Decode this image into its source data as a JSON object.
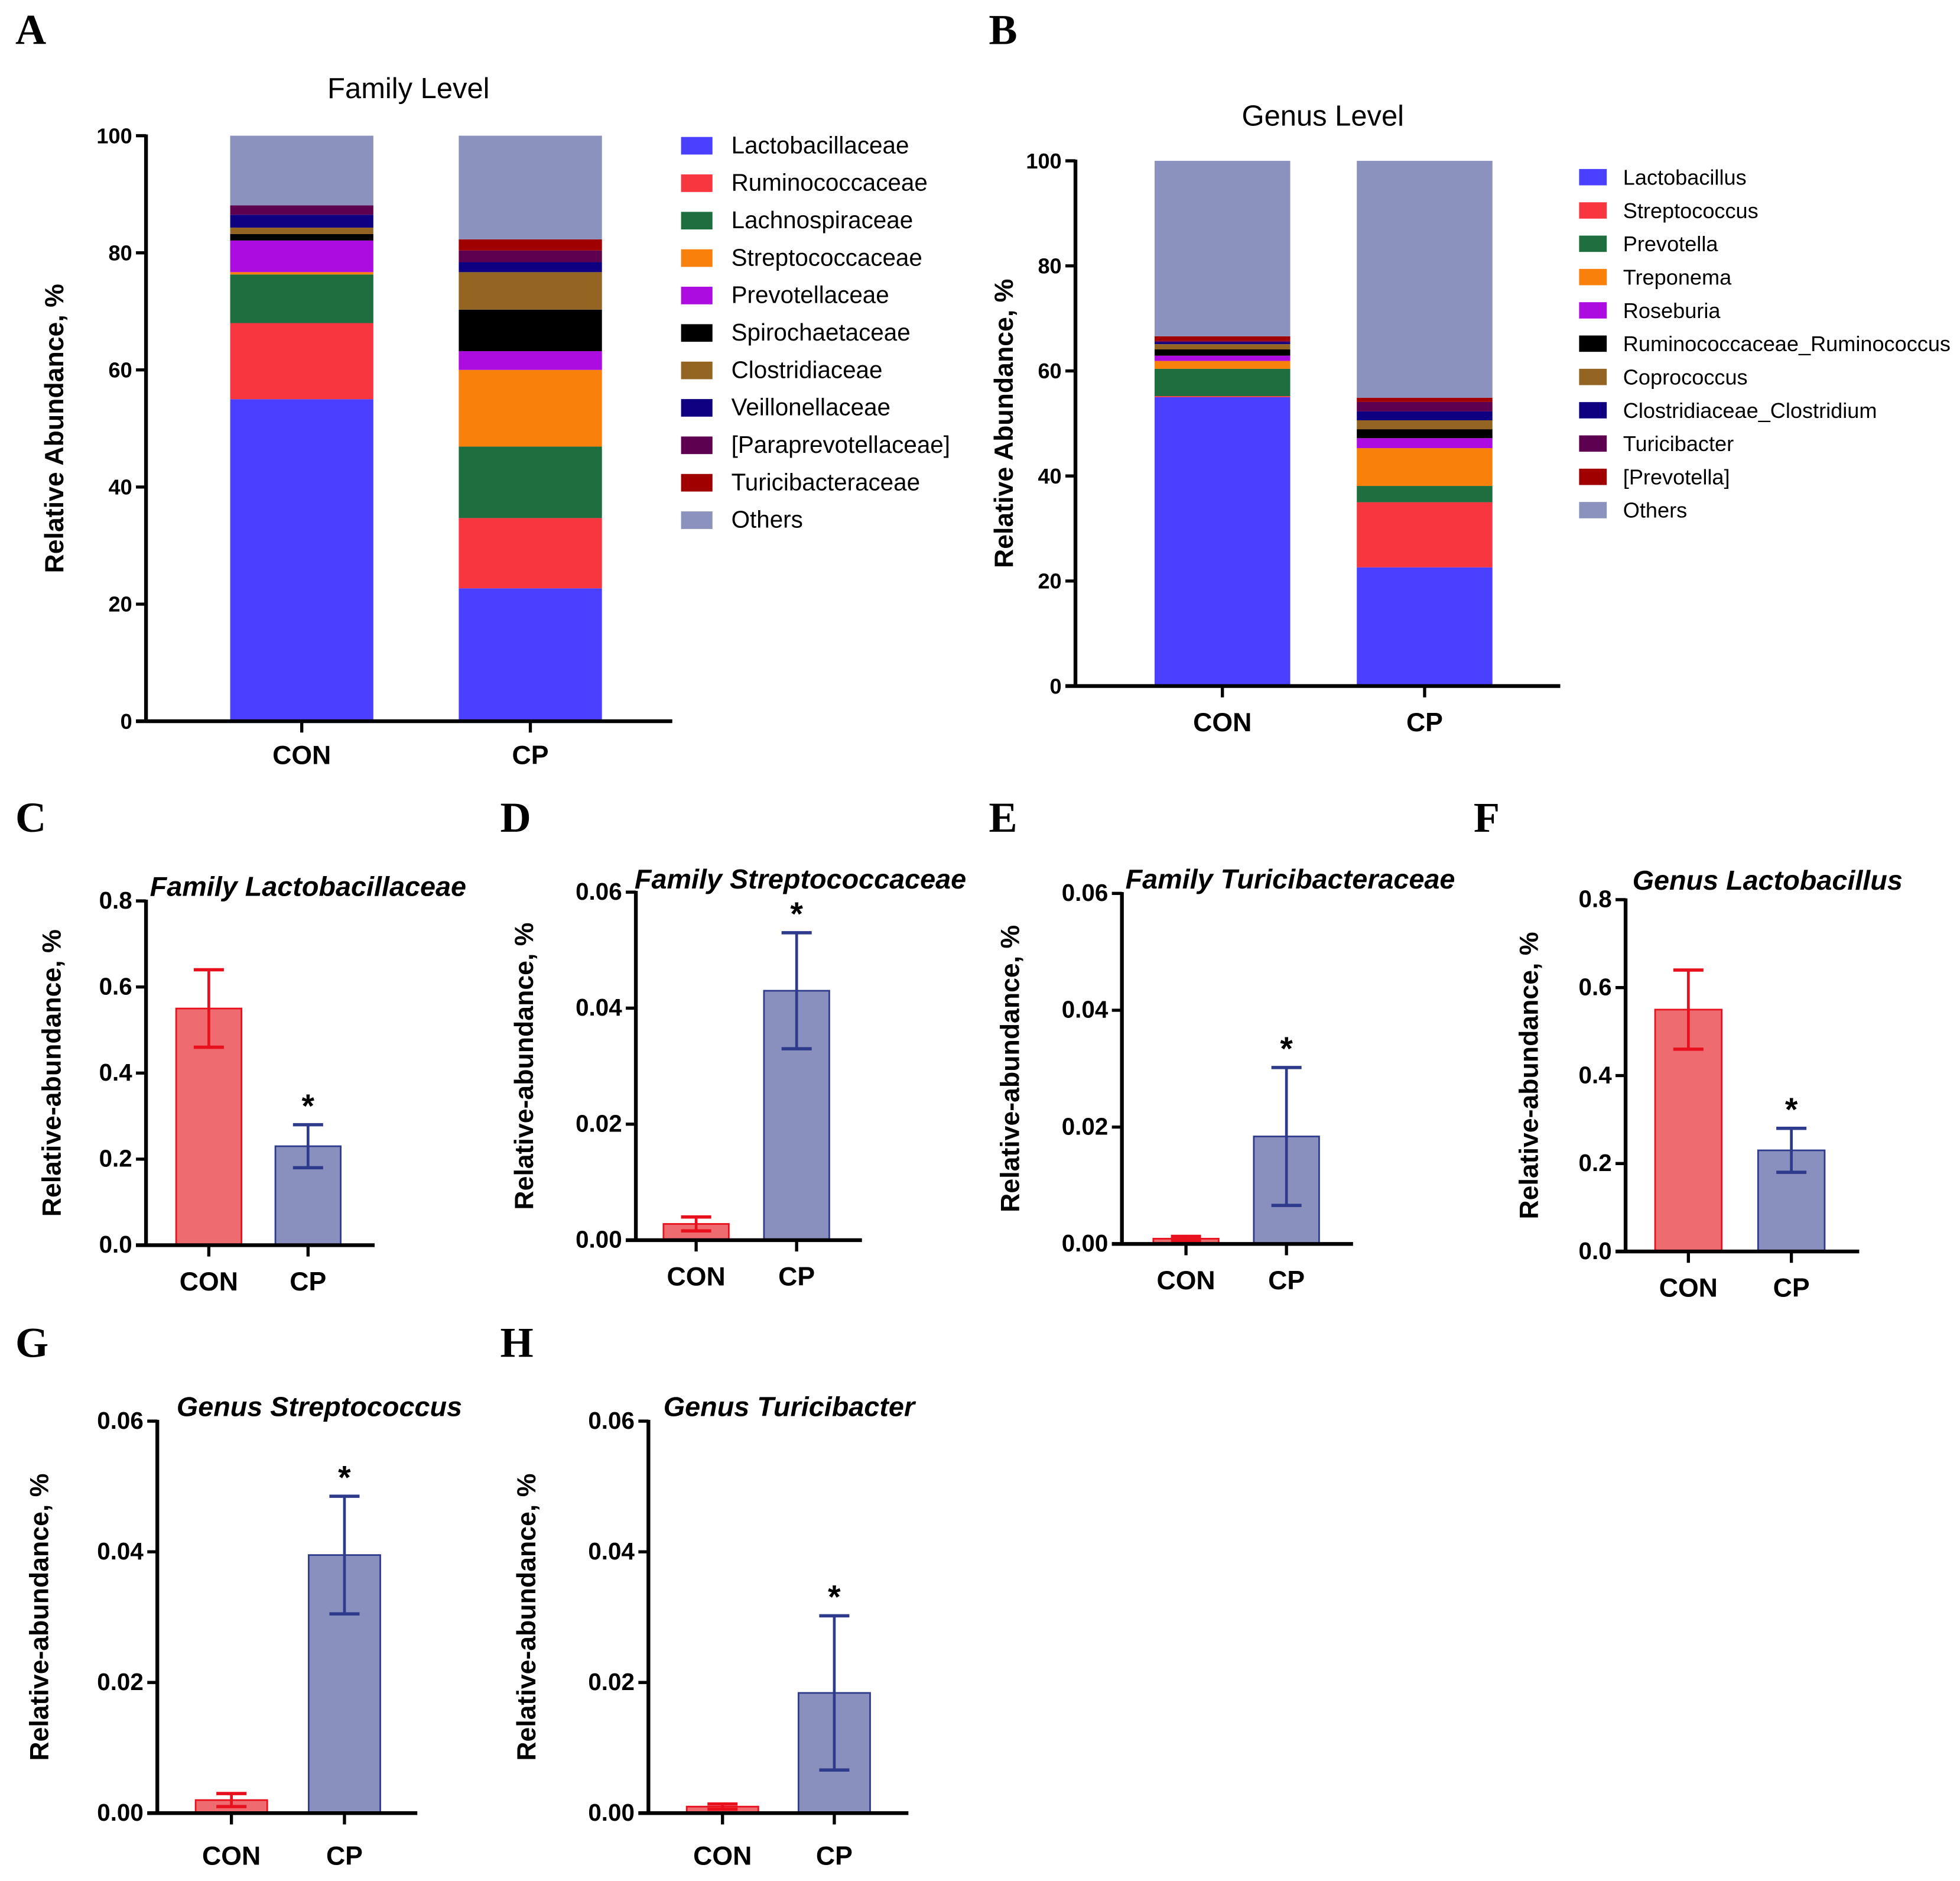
{
  "chart_data": [
    {
      "id": "A",
      "type": "bar",
      "stacked": true,
      "title": "Family Level",
      "xlabel": "",
      "ylabel": "Relative Abundance, %",
      "ylim": [
        0,
        100
      ],
      "yticks": [
        0,
        20,
        40,
        60,
        80,
        100
      ],
      "categories": [
        "CON",
        "CP"
      ],
      "legend_position": "right",
      "series": [
        {
          "name": "Lactobacillaceae",
          "color": "#4b40ff",
          "values": [
            55.0,
            22.7
          ]
        },
        {
          "name": "Ruminococcaceae",
          "color": "#f83640",
          "values": [
            13.0,
            12.0
          ]
        },
        {
          "name": "Lachnospiraceae",
          "color": "#1e6e40",
          "values": [
            8.3,
            12.2
          ]
        },
        {
          "name": "Streptococcaceae",
          "color": "#fa800c",
          "values": [
            0.4,
            13.1
          ]
        },
        {
          "name": "Prevotellaceae",
          "color": "#ac0ce0",
          "values": [
            5.4,
            3.2
          ]
        },
        {
          "name": "Spirochaetaceae",
          "color": "#000000",
          "values": [
            1.1,
            7.1
          ]
        },
        {
          "name": "Clostridiaceae",
          "color": "#946422",
          "values": [
            1.1,
            6.4
          ]
        },
        {
          "name": "Veillonellaceae",
          "color": "#0e0080",
          "values": [
            2.2,
            1.7
          ]
        },
        {
          "name": "[Paraprevotellaceae]",
          "color": "#5e0050",
          "values": [
            1.6,
            2.0
          ]
        },
        {
          "name": "Turicibacteraceae",
          "color": "#a00000",
          "values": [
            0.0,
            1.9
          ]
        },
        {
          "name": "Others",
          "color": "#8a92bd",
          "values": [
            11.9,
            17.7
          ]
        }
      ]
    },
    {
      "id": "B",
      "type": "bar",
      "stacked": true,
      "title": "Genus Level",
      "xlabel": "",
      "ylabel": "Relative Abundance, %",
      "ylim": [
        0,
        100
      ],
      "yticks": [
        0,
        20,
        40,
        60,
        80,
        100
      ],
      "categories": [
        "CON",
        "CP"
      ],
      "legend_position": "right",
      "series": [
        {
          "name": "Lactobacillus",
          "color": "#4b40ff",
          "values": [
            55.0,
            22.6
          ]
        },
        {
          "name": "Streptococcus",
          "color": "#f83640",
          "values": [
            0.2,
            12.4
          ]
        },
        {
          "name": "Prevotella",
          "color": "#1e6e40",
          "values": [
            5.2,
            3.1
          ]
        },
        {
          "name": "Treponema",
          "color": "#fa800c",
          "values": [
            1.5,
            7.2
          ]
        },
        {
          "name": "Roseburia",
          "color": "#ac0ce0",
          "values": [
            1.0,
            1.9
          ]
        },
        {
          "name": "Ruminococcaceae_Ruminococcus",
          "color": "#000000",
          "values": [
            1.2,
            1.7
          ]
        },
        {
          "name": "Coprococcus",
          "color": "#946422",
          "values": [
            1.0,
            1.7
          ]
        },
        {
          "name": "Clostridiaceae_Clostridium",
          "color": "#0e0080",
          "values": [
            0.4,
            1.7
          ]
        },
        {
          "name": "Turicibacter",
          "color": "#5e0050",
          "values": [
            0.2,
            1.8
          ]
        },
        {
          "name": "[Prevotella]",
          "color": "#a00000",
          "values": [
            0.9,
            0.8
          ]
        },
        {
          "name": "Others",
          "color": "#8a92bd",
          "values": [
            33.4,
            45.1
          ]
        }
      ]
    },
    {
      "id": "C",
      "type": "bar",
      "title": "Family Lactobacillaceae",
      "ylabel": "Relative-abundance, %",
      "ylim": [
        0,
        0.8
      ],
      "yticks": [
        "0.0",
        "0.2",
        "0.4",
        "0.6",
        "0.8"
      ],
      "categories": [
        "CON",
        "CP"
      ],
      "values": [
        0.55,
        0.23
      ],
      "errors": [
        0.09,
        0.05
      ],
      "significance": [
        "",
        "*"
      ],
      "colors": {
        "CON_fill": "#ee6b70",
        "CON_line": "#e8101c",
        "CP_fill": "#8a90bd",
        "CP_line": "#2e3a8c"
      }
    },
    {
      "id": "D",
      "type": "bar",
      "title": "Family Streptococcaceae",
      "ylabel": "Relative-abundance, %",
      "ylim": [
        0,
        0.06
      ],
      "yticks": [
        "0.00",
        "0.02",
        "0.04",
        "0.06"
      ],
      "categories": [
        "CON",
        "CP"
      ],
      "values": [
        0.0028,
        0.043
      ],
      "errors": [
        0.0012,
        0.01
      ],
      "significance": [
        "",
        "*"
      ],
      "colors": {
        "CON_fill": "#ee6b70",
        "CON_line": "#e8101c",
        "CP_fill": "#8a90bd",
        "CP_line": "#2e3a8c"
      }
    },
    {
      "id": "E",
      "type": "bar",
      "title": "Family Turicibacteraceae",
      "ylabel": "Relative-abundance, %",
      "ylim": [
        0,
        0.06
      ],
      "yticks": [
        "0.00",
        "0.02",
        "0.04",
        "0.06"
      ],
      "categories": [
        "CON",
        "CP"
      ],
      "values": [
        0.0009,
        0.0184
      ],
      "errors": [
        0.0004,
        0.0118
      ],
      "significance": [
        "",
        "*"
      ],
      "colors": {
        "CON_fill": "#ee6b70",
        "CON_line": "#e8101c",
        "CP_fill": "#8a90bd",
        "CP_line": "#2e3a8c"
      }
    },
    {
      "id": "F",
      "type": "bar",
      "title": "Genus Lactobacillus",
      "ylabel": "Relative-abundance, %",
      "ylim": [
        0,
        0.8
      ],
      "yticks": [
        "0.0",
        "0.2",
        "0.4",
        "0.6",
        "0.8"
      ],
      "categories": [
        "CON",
        "CP"
      ],
      "values": [
        0.55,
        0.23
      ],
      "errors": [
        0.09,
        0.05
      ],
      "significance": [
        "",
        "*"
      ],
      "colors": {
        "CON_fill": "#ee6b70",
        "CON_line": "#e8101c",
        "CP_fill": "#8a90bd",
        "CP_line": "#2e3a8c"
      }
    },
    {
      "id": "G",
      "type": "bar",
      "title": "Genus Streptococcus",
      "ylabel": "Relative-abundance, %",
      "ylim": [
        0,
        0.06
      ],
      "yticks": [
        "0.00",
        "0.02",
        "0.04",
        "0.06"
      ],
      "categories": [
        "CON",
        "CP"
      ],
      "values": [
        0.002,
        0.0395
      ],
      "errors": [
        0.001,
        0.009
      ],
      "significance": [
        "",
        "*"
      ],
      "colors": {
        "CON_fill": "#ee6b70",
        "CON_line": "#e8101c",
        "CP_fill": "#8a90bd",
        "CP_line": "#2e3a8c"
      }
    },
    {
      "id": "H",
      "type": "bar",
      "title": "Genus Turicibacter",
      "ylabel": "Relative-abundance, %",
      "ylim": [
        0,
        0.06
      ],
      "yticks": [
        "0.00",
        "0.02",
        "0.04",
        "0.06"
      ],
      "categories": [
        "CON",
        "CP"
      ],
      "values": [
        0.001,
        0.0184
      ],
      "errors": [
        0.0004,
        0.0118
      ],
      "significance": [
        "",
        "*"
      ],
      "colors": {
        "CON_fill": "#ee6b70",
        "CON_line": "#e8101c",
        "CP_fill": "#8a90bd",
        "CP_line": "#2e3a8c"
      }
    }
  ]
}
